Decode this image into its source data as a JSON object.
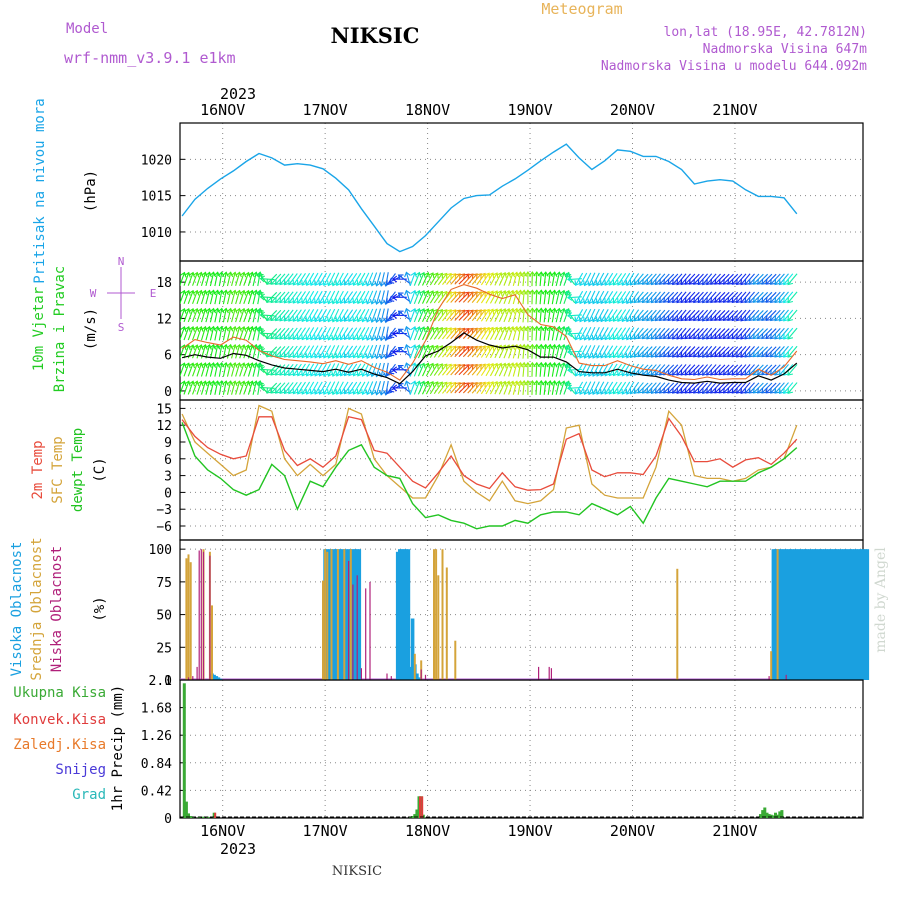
{
  "header": {
    "model_label": "Model",
    "model_name": "wrf-nmm_v3.9.1  e1km",
    "station": "NIKSIC",
    "meteogram": "Meteogram",
    "lonlat": "lon,lat (18.95E, 42.7812N)",
    "elevation": "Nadmorska Visina 647m",
    "model_elevation": "Nadmorska Visina u modelu 644.092m"
  },
  "footer": {
    "station": "NIKSIC",
    "watermark": "made by Angel"
  },
  "colors": {
    "pressure": "#1aa5e8",
    "wind_title": "#22cc22",
    "speed_black": "#000000",
    "gust": "#e86a2a",
    "temp2m": "#e84c3c",
    "sfc_temp": "#d4a43a",
    "dewpt": "#22c422",
    "cloud_high": "#1aa0e0",
    "cloud_mid": "#d4a43a",
    "cloud_low": "#b0207a",
    "precip_total": "#3aaa35",
    "precip_conv": "#e03c3c",
    "precip_frozen": "#e87a2a",
    "snow": "#4a3ad8",
    "graupel": "#2ab8b8"
  },
  "chart_data": [
    {
      "type": "line",
      "panel": "pressure",
      "ylabel": [
        "Pritisak na nivou mora",
        "(hPa)"
      ],
      "yticks": [
        1010,
        1015,
        1020
      ],
      "ylim": [
        1006,
        1025
      ],
      "x_year": "2023",
      "x_days": [
        "16NOV",
        "17NOV",
        "18NOV",
        "19NOV",
        "20NOV",
        "21NOV"
      ],
      "x_hours": [
        0,
        3,
        6,
        9,
        12,
        15,
        18,
        21,
        24,
        27,
        30,
        33,
        36,
        39,
        42,
        45,
        48,
        51,
        54,
        57,
        60,
        63,
        66,
        69,
        72,
        75,
        78,
        81,
        84,
        87,
        90,
        93,
        96,
        99,
        102,
        105,
        108,
        111,
        114,
        117,
        120,
        123,
        126,
        129,
        132,
        135,
        138,
        141,
        144
      ],
      "series": [
        {
          "values": [
            1012.2,
            1014.5,
            1016.0,
            1017.3,
            1018.4,
            1019.7,
            1020.8,
            1020.2,
            1019.2,
            1019.4,
            1019.2,
            1018.7,
            1017.4,
            1015.8,
            1013.2,
            1010.8,
            1008.4,
            1007.3,
            1008.0,
            1009.5,
            1011.4,
            1013.3,
            1014.6,
            1015.0,
            1015.1,
            1016.3,
            1017.3,
            1018.5,
            1019.8,
            1021.0,
            1022.1,
            1020.2,
            1018.6,
            1019.8,
            1021.3,
            1021.1,
            1020.4,
            1020.4,
            1019.7,
            1018.6,
            1016.6,
            1017.0,
            1017.2,
            1017.0,
            1015.8,
            1014.9,
            1014.9,
            1014.7,
            1012.5
          ]
        }
      ]
    },
    {
      "type": "line",
      "panel": "wind",
      "ylabel": [
        "10m Vjetar",
        "Brzina i Pravac",
        "(m/s)"
      ],
      "legend_compass": [
        "W",
        "N",
        "E",
        "S"
      ],
      "yticks": [
        0,
        6,
        12,
        18
      ],
      "ylim": [
        -1.5,
        21.5
      ],
      "x_hours": [
        0,
        3,
        6,
        9,
        12,
        15,
        18,
        21,
        24,
        27,
        30,
        33,
        36,
        39,
        42,
        45,
        48,
        51,
        54,
        57,
        60,
        63,
        66,
        69,
        72,
        75,
        78,
        81,
        84,
        87,
        90,
        93,
        96,
        99,
        102,
        105,
        108,
        111,
        114,
        117,
        120,
        123,
        126,
        129,
        132,
        135,
        138,
        141,
        144
      ],
      "series": [
        {
          "role": "speed",
          "values": [
            5.5,
            6.0,
            5.6,
            5.4,
            6.2,
            5.9,
            5.0,
            4.3,
            3.8,
            3.6,
            3.4,
            3.2,
            3.6,
            3.1,
            3.6,
            2.8,
            2.2,
            1.2,
            3.2,
            5.8,
            6.6,
            8.0,
            9.6,
            8.4,
            7.6,
            7.1,
            7.4,
            6.8,
            5.6,
            5.6,
            4.8,
            3.2,
            3.0,
            3.0,
            3.6,
            3.0,
            2.6,
            2.4,
            1.8,
            1.4,
            1.3,
            1.6,
            1.3,
            1.4,
            1.4,
            2.5,
            1.8,
            2.8,
            4.6
          ]
        },
        {
          "role": "gust",
          "values": [
            7.0,
            8.5,
            8.0,
            7.6,
            8.9,
            8.4,
            6.7,
            5.8,
            5.2,
            5.0,
            4.8,
            4.5,
            5.0,
            4.4,
            5.0,
            3.9,
            3.1,
            1.8,
            4.6,
            8.3,
            13.5,
            16.8,
            17.6,
            17.0,
            16.0,
            15.3,
            15.9,
            12.6,
            11.0,
            10.6,
            9.0,
            4.6,
            4.2,
            4.2,
            5.0,
            4.2,
            3.6,
            3.4,
            2.6,
            2.0,
            1.9,
            2.3,
            1.9,
            2.0,
            2.0,
            3.6,
            2.6,
            4.0,
            6.6
          ]
        }
      ],
      "wind_direction_deg": [
        200,
        200,
        195,
        190,
        195,
        200,
        190,
        45,
        40,
        35,
        30,
        30,
        25,
        35,
        30,
        20,
        10,
        90,
        200,
        205,
        215,
        220,
        225,
        220,
        210,
        205,
        195,
        180,
        185,
        190,
        200,
        30,
        25,
        30,
        35,
        30,
        45,
        40,
        45,
        40,
        45,
        40,
        45,
        45,
        40,
        45,
        45,
        40,
        40
      ]
    },
    {
      "type": "line",
      "panel": "temperature",
      "ylabel": [
        "2m Temp",
        "SFC Temp",
        "dewpt Temp",
        "(C)"
      ],
      "yticks": [
        -6,
        -3,
        0,
        3,
        6,
        9,
        12,
        15
      ],
      "ylim": [
        -8.5,
        16.5
      ],
      "x_hours": [
        0,
        3,
        6,
        9,
        12,
        15,
        18,
        21,
        24,
        27,
        30,
        33,
        36,
        39,
        42,
        45,
        48,
        51,
        54,
        57,
        60,
        63,
        66,
        69,
        72,
        75,
        78,
        81,
        84,
        87,
        90,
        93,
        96,
        99,
        102,
        105,
        108,
        111,
        114,
        117,
        120,
        123,
        126,
        129,
        132,
        135,
        138,
        141,
        144
      ],
      "series": [
        {
          "name": "2m Temp",
          "values": [
            13.0,
            10.0,
            8.0,
            6.8,
            6.0,
            6.5,
            13.5,
            13.5,
            7.5,
            4.8,
            6.0,
            4.5,
            6.5,
            13.5,
            13.0,
            7.5,
            7.0,
            4.5,
            2.0,
            0.8,
            3.5,
            6.5,
            3.0,
            1.5,
            0.7,
            3.5,
            1.0,
            0.4,
            0.5,
            1.5,
            9.5,
            10.5,
            4.0,
            2.8,
            3.5,
            3.5,
            3.2,
            6.5,
            13.2,
            10.0,
            5.5,
            5.5,
            6.0,
            4.5,
            5.8,
            6.2,
            5.0,
            7.0,
            9.5
          ]
        },
        {
          "name": "SFC Temp",
          "values": [
            14.0,
            9.0,
            7.0,
            5.0,
            3.0,
            4.0,
            15.5,
            14.5,
            6.0,
            3.0,
            5.0,
            3.0,
            5.0,
            15.0,
            14.0,
            6.0,
            3.0,
            1.0,
            -1.0,
            -1.0,
            3.0,
            8.5,
            2.0,
            0.0,
            -1.5,
            2.0,
            -1.5,
            -2.0,
            -1.5,
            0.5,
            11.5,
            12.0,
            1.5,
            -0.5,
            -1.0,
            -1.0,
            -1.0,
            4.5,
            14.5,
            12.0,
            3.0,
            2.5,
            2.5,
            2.0,
            2.5,
            4.0,
            4.5,
            6.0,
            12.0
          ]
        },
        {
          "name": "dewpt Temp",
          "values": [
            12.5,
            6.5,
            4.0,
            2.5,
            0.5,
            -0.5,
            0.5,
            5.0,
            3.0,
            -3.0,
            2.0,
            1.0,
            4.5,
            7.5,
            8.5,
            4.5,
            3.0,
            2.5,
            -2.0,
            -4.5,
            -4.0,
            -5.0,
            -5.5,
            -6.5,
            -6.0,
            -6.0,
            -5.0,
            -5.5,
            -4.0,
            -3.5,
            -3.5,
            -4.0,
            -2.0,
            -3.0,
            -4.0,
            -2.5,
            -5.5,
            -1.0,
            2.5,
            2.0,
            1.5,
            1.0,
            2.0,
            2.0,
            2.0,
            3.5,
            4.5,
            6.0,
            8.0
          ]
        }
      ]
    },
    {
      "type": "bar",
      "panel": "clouds",
      "ylabel": [
        "Visoka Oblacnost",
        "Srednja Oblacnost",
        "Niska Oblacnost",
        "(%)"
      ],
      "yticks": [
        0,
        25,
        50,
        75,
        100
      ],
      "ylim": [
        0,
        107
      ],
      "series": [
        {
          "name": "Visoka Oblacnost",
          "x": [
            7.0,
            7.5,
            8.0,
            8.5,
            9.0,
            33.5,
            34.0,
            34.5,
            35.0,
            35.5,
            36.0,
            36.5,
            37.0,
            37.5,
            38.0,
            38.5,
            39.0,
            39.5,
            40.0,
            40.5,
            41.0,
            41.5,
            50.5,
            51.0,
            51.5,
            52.0,
            52.5,
            53.0,
            53.5,
            54.0,
            54.5,
            55.0,
            55.5,
            138.5,
            139.0,
            139.5,
            140.0,
            140.5,
            141.0,
            141.5,
            142.0,
            142.5,
            143.0,
            143.5,
            144.0,
            144.5,
            145.0,
            145.5,
            146.0,
            146.5,
            147.0,
            147.5,
            148.0,
            148.5,
            149.0,
            149.5,
            150.0,
            150.5,
            151.0,
            151.5,
            152.0,
            152.5,
            153.0,
            153.5,
            154.0,
            154.5,
            155.0,
            155.5,
            156.0,
            156.5,
            157.0,
            157.5,
            158.0,
            158.5,
            159.0,
            159.5,
            160.0,
            160.5
          ],
          "values": [
            5,
            4,
            3,
            2,
            1,
            100,
            100,
            100,
            100,
            100,
            100,
            100,
            100,
            100,
            100,
            100,
            100,
            100,
            100,
            100,
            100,
            100,
            98,
            100,
            100,
            100,
            100,
            100,
            10,
            47,
            12,
            5,
            2,
            100,
            100,
            100,
            100,
            100,
            100,
            100,
            100,
            100,
            100,
            100,
            100,
            100,
            100,
            100,
            100,
            100,
            100,
            100,
            100,
            100,
            100,
            100,
            100,
            100,
            100,
            100,
            100,
            100,
            100,
            100,
            100,
            100,
            100,
            100,
            100,
            100,
            100,
            100,
            100,
            100,
            100,
            100,
            100,
            100
          ]
        },
        {
          "name": "Srednja Oblacnost",
          "x": [
            1.0,
            1.5,
            2.0,
            5.0,
            6.5,
            7.0,
            33.0,
            33.5,
            34.0,
            35.0,
            36.5,
            38.0,
            39.5,
            54.5,
            56.0,
            59.0,
            59.5,
            60.0,
            61.0,
            62.0,
            64.0,
            116.0,
            138.0,
            139.5
          ],
          "values": [
            93,
            96,
            90,
            100,
            98,
            57,
            76,
            100,
            98,
            100,
            100,
            100,
            100,
            20,
            15,
            100,
            100,
            80,
            100,
            86,
            30,
            85,
            22,
            100
          ]
        },
        {
          "name": "Niska Oblacnost",
          "x": [
            1.5,
            2.5,
            3.5,
            4.0,
            4.5,
            5.0,
            6.5,
            39.0,
            40.0,
            41.0,
            42.0,
            43.0,
            44.0,
            48.0,
            49.0,
            56.0,
            57.0,
            83.5,
            86.0,
            86.5,
            137.5,
            141.5
          ],
          "values": [
            2,
            3,
            10,
            99,
            100,
            98,
            95,
            91,
            73,
            80,
            9,
            70,
            75,
            5,
            3,
            8,
            4,
            10,
            10,
            9,
            3,
            4
          ]
        }
      ]
    },
    {
      "type": "bar",
      "panel": "precipitation",
      "ylabel": [
        "1hr Precip (mm)"
      ],
      "legend": [
        "Ukupna Kisa",
        "Konvek.Kisa",
        "Zaledj.Kisa",
        "Snijeg",
        "Grad"
      ],
      "yticks": [
        0,
        0.42,
        0.84,
        1.26,
        1.68,
        2.1
      ],
      "ylim": [
        0,
        2.1
      ],
      "series": [
        {
          "name": "Ukupna Kisa",
          "x": [
            0.5,
            1.0,
            1.5,
            2.0,
            2.5,
            4.0,
            5.0,
            6.0,
            7.5,
            53.5,
            54.0,
            54.5,
            55.0,
            55.5,
            56.0,
            56.5,
            135.5,
            136.0,
            136.5,
            137.0,
            137.5,
            138.0,
            138.5,
            139.0,
            139.5,
            140.0,
            140.5
          ],
          "values": [
            2.05,
            0.25,
            0.07,
            0.03,
            0.02,
            0.02,
            0.02,
            0.02,
            0.08,
            0.02,
            0.03,
            0.06,
            0.13,
            0.33,
            0.33,
            0.05,
            0.06,
            0.12,
            0.16,
            0.08,
            0.06,
            0.05,
            0.04,
            0.08,
            0.05,
            0.1,
            0.12
          ]
        },
        {
          "name": "Konvek.Kisa",
          "x": [
            7.5,
            55.5,
            56.0
          ],
          "values": [
            0.08,
            0.33,
            0.33
          ]
        }
      ]
    }
  ]
}
